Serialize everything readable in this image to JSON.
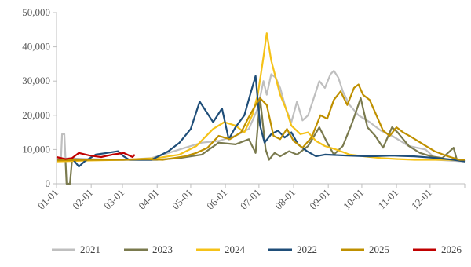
{
  "chart_data": {
    "type": "line",
    "title": "",
    "xlabel": "",
    "ylabel": "",
    "ylim": [
      0,
      50000
    ],
    "yticks": [
      0,
      10000,
      20000,
      30000,
      40000,
      50000
    ],
    "ytick_labels": [
      "0",
      "10,000",
      "20,000",
      "30,000",
      "40,000",
      "50,000"
    ],
    "x_domain_days": [
      0,
      365
    ],
    "xtick_labels": [
      "01-01",
      "02-01",
      "03-01",
      "04-01",
      "05-01",
      "06-01",
      "07-01",
      "08-01",
      "09-01",
      "10-01",
      "11-01",
      "12-01"
    ],
    "xtick_days": [
      0,
      31,
      59,
      90,
      120,
      151,
      181,
      212,
      243,
      273,
      304,
      334
    ],
    "grid": false,
    "legend_position": "bottom",
    "series": [
      {
        "name": "2021",
        "color": "#bfbfbf",
        "points": [
          [
            0,
            7500
          ],
          [
            4,
            7200
          ],
          [
            5,
            14500
          ],
          [
            7,
            14500
          ],
          [
            8,
            7400
          ],
          [
            30,
            7200
          ],
          [
            60,
            7000
          ],
          [
            85,
            7500
          ],
          [
            100,
            9000
          ],
          [
            115,
            10500
          ],
          [
            130,
            12000
          ],
          [
            145,
            12500
          ],
          [
            160,
            14000
          ],
          [
            172,
            16000
          ],
          [
            180,
            22000
          ],
          [
            185,
            30000
          ],
          [
            188,
            26000
          ],
          [
            192,
            32000
          ],
          [
            196,
            31000
          ],
          [
            200,
            28000
          ],
          [
            205,
            22000
          ],
          [
            210,
            18000
          ],
          [
            215,
            24000
          ],
          [
            220,
            18500
          ],
          [
            225,
            20000
          ],
          [
            230,
            25000
          ],
          [
            235,
            30000
          ],
          [
            240,
            28000
          ],
          [
            245,
            32000
          ],
          [
            248,
            33000
          ],
          [
            252,
            31000
          ],
          [
            256,
            27000
          ],
          [
            262,
            23000
          ],
          [
            270,
            20000
          ],
          [
            280,
            18000
          ],
          [
            290,
            15500
          ],
          [
            300,
            14000
          ],
          [
            315,
            11000
          ],
          [
            330,
            10000
          ],
          [
            340,
            7000
          ],
          [
            350,
            6800
          ],
          [
            365,
            6500
          ]
        ]
      },
      {
        "name": "2023",
        "color": "#7a7a4e",
        "points": [
          [
            0,
            7000
          ],
          [
            8,
            7000
          ],
          [
            9,
            0
          ],
          [
            12,
            0
          ],
          [
            14,
            7200
          ],
          [
            30,
            7000
          ],
          [
            60,
            7000
          ],
          [
            90,
            7000
          ],
          [
            110,
            7500
          ],
          [
            130,
            8500
          ],
          [
            145,
            12000
          ],
          [
            160,
            11500
          ],
          [
            172,
            13000
          ],
          [
            178,
            9000
          ],
          [
            182,
            25000
          ],
          [
            187,
            10000
          ],
          [
            190,
            7000
          ],
          [
            195,
            9000
          ],
          [
            200,
            8000
          ],
          [
            208,
            9500
          ],
          [
            215,
            8500
          ],
          [
            225,
            11000
          ],
          [
            235,
            16500
          ],
          [
            242,
            12000
          ],
          [
            248,
            8500
          ],
          [
            256,
            11000
          ],
          [
            264,
            17500
          ],
          [
            272,
            25000
          ],
          [
            278,
            16500
          ],
          [
            285,
            14000
          ],
          [
            292,
            10500
          ],
          [
            300,
            16500
          ],
          [
            305,
            15000
          ],
          [
            315,
            11000
          ],
          [
            325,
            9000
          ],
          [
            335,
            8000
          ],
          [
            345,
            7500
          ],
          [
            355,
            10500
          ],
          [
            358,
            7000
          ],
          [
            365,
            6500
          ]
        ]
      },
      {
        "name": "2024",
        "color": "#f5c218",
        "points": [
          [
            0,
            6500
          ],
          [
            30,
            6800
          ],
          [
            60,
            7000
          ],
          [
            90,
            7500
          ],
          [
            110,
            8500
          ],
          [
            125,
            11000
          ],
          [
            140,
            16000
          ],
          [
            150,
            18000
          ],
          [
            160,
            17000
          ],
          [
            168,
            15000
          ],
          [
            175,
            20000
          ],
          [
            180,
            26000
          ],
          [
            185,
            37000
          ],
          [
            188,
            44000
          ],
          [
            192,
            36000
          ],
          [
            196,
            31000
          ],
          [
            200,
            26000
          ],
          [
            205,
            22000
          ],
          [
            210,
            17000
          ],
          [
            218,
            14500
          ],
          [
            225,
            15000
          ],
          [
            232,
            12500
          ],
          [
            240,
            11000
          ],
          [
            250,
            10000
          ],
          [
            262,
            8500
          ],
          [
            275,
            8000
          ],
          [
            290,
            7500
          ],
          [
            305,
            7200
          ],
          [
            320,
            7000
          ],
          [
            335,
            7000
          ],
          [
            350,
            7000
          ],
          [
            365,
            6800
          ]
        ]
      },
      {
        "name": "2022",
        "color": "#1f4e79",
        "points": [
          [
            0,
            7000
          ],
          [
            15,
            7000
          ],
          [
            20,
            5000
          ],
          [
            25,
            6500
          ],
          [
            35,
            8500
          ],
          [
            45,
            9000
          ],
          [
            55,
            9500
          ],
          [
            60,
            8000
          ],
          [
            65,
            7000
          ],
          [
            85,
            7000
          ],
          [
            100,
            9500
          ],
          [
            110,
            12000
          ],
          [
            120,
            16000
          ],
          [
            128,
            24000
          ],
          [
            134,
            21000
          ],
          [
            140,
            18000
          ],
          [
            148,
            22000
          ],
          [
            154,
            13000
          ],
          [
            160,
            16500
          ],
          [
            168,
            20000
          ],
          [
            174,
            27000
          ],
          [
            178,
            31500
          ],
          [
            182,
            17000
          ],
          [
            186,
            12000
          ],
          [
            192,
            14500
          ],
          [
            198,
            15500
          ],
          [
            204,
            13500
          ],
          [
            210,
            15000
          ],
          [
            216,
            11500
          ],
          [
            224,
            9500
          ],
          [
            232,
            8000
          ],
          [
            240,
            8500
          ],
          [
            260,
            8200
          ],
          [
            280,
            8000
          ],
          [
            300,
            8200
          ],
          [
            320,
            8000
          ],
          [
            340,
            7500
          ],
          [
            355,
            7000
          ],
          [
            365,
            6500
          ]
        ]
      },
      {
        "name": "2025",
        "color": "#bf9000",
        "points": [
          [
            0,
            6800
          ],
          [
            30,
            7000
          ],
          [
            60,
            7000
          ],
          [
            80,
            7200
          ],
          [
            95,
            7000
          ],
          [
            105,
            7500
          ],
          [
            115,
            8000
          ],
          [
            125,
            9000
          ],
          [
            135,
            10500
          ],
          [
            145,
            14000
          ],
          [
            155,
            13000
          ],
          [
            165,
            15000
          ],
          [
            172,
            19500
          ],
          [
            178,
            23000
          ],
          [
            182,
            25000
          ],
          [
            188,
            23000
          ],
          [
            194,
            14000
          ],
          [
            200,
            13000
          ],
          [
            206,
            16000
          ],
          [
            212,
            12500
          ],
          [
            220,
            10500
          ],
          [
            228,
            13500
          ],
          [
            236,
            20000
          ],
          [
            242,
            19000
          ],
          [
            248,
            24500
          ],
          [
            254,
            27000
          ],
          [
            260,
            23000
          ],
          [
            266,
            28000
          ],
          [
            270,
            29000
          ],
          [
            274,
            26000
          ],
          [
            280,
            24500
          ],
          [
            286,
            20000
          ],
          [
            292,
            15500
          ],
          [
            298,
            14000
          ],
          [
            304,
            16500
          ],
          [
            310,
            15000
          ],
          [
            318,
            13500
          ],
          [
            328,
            11500
          ],
          [
            338,
            9500
          ],
          [
            350,
            8000
          ],
          [
            360,
            7000
          ],
          [
            365,
            7000
          ]
        ]
      },
      {
        "name": "2026",
        "color": "#c00000",
        "points": [
          [
            0,
            7800
          ],
          [
            8,
            7200
          ],
          [
            14,
            7500
          ],
          [
            20,
            9000
          ],
          [
            30,
            8200
          ],
          [
            40,
            7800
          ],
          [
            50,
            8500
          ],
          [
            60,
            9000
          ],
          [
            68,
            7800
          ],
          [
            70,
            8500
          ]
        ]
      }
    ]
  }
}
